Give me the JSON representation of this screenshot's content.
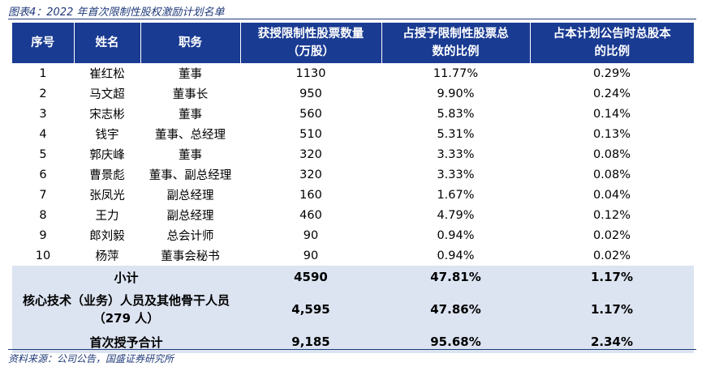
{
  "caption": "图表4：2022 年首次限制性股权激励计划名单",
  "headers": {
    "col1": "序号",
    "col2": "姓名",
    "col3": "职务",
    "col4_line1": "获授限制性股票数量",
    "col4_line2": "（万股）",
    "col5_line1": "占授予限制性股票总",
    "col5_line2": "数的比例",
    "col6_line1": "占本计划公告时总股本",
    "col6_line2": "的比例"
  },
  "rows": [
    {
      "no": "1",
      "name": "崔红松",
      "role": "董事",
      "shares": "1130",
      "pct_grant": "11.77%",
      "pct_total": "0.29%"
    },
    {
      "no": "2",
      "name": "马文超",
      "role": "董事长",
      "shares": "950",
      "pct_grant": "9.90%",
      "pct_total": "0.24%"
    },
    {
      "no": "3",
      "name": "宋志彬",
      "role": "董事",
      "shares": "560",
      "pct_grant": "5.83%",
      "pct_total": "0.14%"
    },
    {
      "no": "4",
      "name": "钱宇",
      "role": "董事、总经理",
      "shares": "510",
      "pct_grant": "5.31%",
      "pct_total": "0.13%"
    },
    {
      "no": "5",
      "name": "郭庆峰",
      "role": "董事",
      "shares": "320",
      "pct_grant": "3.33%",
      "pct_total": "0.08%"
    },
    {
      "no": "6",
      "name": "曹景彪",
      "role": "董事、副总经理",
      "shares": "320",
      "pct_grant": "3.33%",
      "pct_total": "0.08%"
    },
    {
      "no": "7",
      "name": "张凤光",
      "role": "副总经理",
      "shares": "160",
      "pct_grant": "1.67%",
      "pct_total": "0.04%"
    },
    {
      "no": "8",
      "name": "王力",
      "role": "副总经理",
      "shares": "460",
      "pct_grant": "4.79%",
      "pct_total": "0.12%"
    },
    {
      "no": "9",
      "name": "郎刘毅",
      "role": "总会计师",
      "shares": "90",
      "pct_grant": "0.94%",
      "pct_total": "0.02%"
    },
    {
      "no": "10",
      "name": "杨萍",
      "role": "董事会秘书",
      "shares": "90",
      "pct_grant": "0.94%",
      "pct_total": "0.02%"
    }
  ],
  "subtotal": {
    "label": "小计",
    "shares": "4590",
    "pct_grant": "47.81%",
    "pct_total": "1.17%"
  },
  "core_staff": {
    "label_line1": "核心技术（业务）人员及其他骨干人员",
    "label_line2": "（279 人）",
    "shares": "4,595",
    "pct_grant": "47.86%",
    "pct_total": "1.17%"
  },
  "total": {
    "label": "首次授予合计",
    "shares": "9,185",
    "pct_grant": "95.68%",
    "pct_total": "2.34%"
  },
  "source": "资料来源：公司公告，国盛证券研究所"
}
